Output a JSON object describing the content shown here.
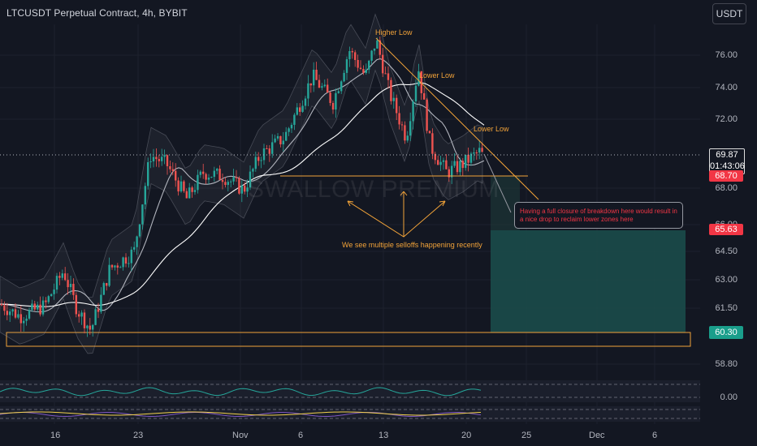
{
  "header": {
    "title": "LTCUSDT Perpetual Contract, 4h, BYBIT",
    "currency_button": "USDT"
  },
  "watermark": "SWALLOW PREMIUM",
  "price_axis": {
    "labels": [
      "76.00",
      "74.00",
      "72.00",
      "68.00",
      "66.00",
      "64.50",
      "63.00",
      "61.50",
      "58.80",
      "0.00"
    ],
    "current_price": "69.87",
    "countdown": "01:43:06",
    "support_tag": "68.70",
    "target_tag_a": "65.63",
    "target_tag_b": "60.30"
  },
  "time_axis": {
    "labels": [
      "16",
      "23",
      "Nov",
      "6",
      "13",
      "20",
      "25",
      "Dec",
      "6"
    ]
  },
  "annotations": {
    "higher_low": "Higher Low",
    "lower_low_1": "Lower Low",
    "lower_low_2": "Lower Low",
    "selloffs": "We see multiple selloffs happening recently",
    "note": "Having a full closure of breakdown here would result in a nice drop to reclaim lower zones here"
  },
  "colors": {
    "background": "#131722",
    "up": "#26a69a",
    "down": "#ef5350",
    "annotation": "#f2a339",
    "target_zone": "#1b4b4a",
    "note_text": "#f23645"
  },
  "icons": {
    "currency": "usdt-currency"
  },
  "chart_data": {
    "type": "candlestick",
    "symbol": "LTCUSDT",
    "timeframe": "4h",
    "exchange": "BYBIT",
    "current_price": 69.87,
    "support_level": 68.7,
    "targets": [
      65.63,
      60.3
    ],
    "ylim": [
      57.8,
      77.0
    ],
    "trend_line_points": [
      [
        "Nov 11",
        76.6
      ],
      [
        "Nov 22",
        68.7
      ]
    ],
    "support_zone": [
      59.6,
      60.5
    ],
    "moving_averages": [
      "short SMA",
      "long SMA"
    ],
    "bollinger_bands": true,
    "oscillator_zero": 0.0
  }
}
